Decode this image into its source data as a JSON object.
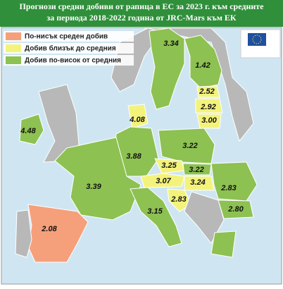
{
  "header": {
    "title": [
      "Прогнози средни добиви от рапица в ЕС за 2023 г. към средните",
      "за периода 2018-2022 година от JRC-Mars към ЕК"
    ]
  },
  "legend": [
    {
      "label": "По-нисък среден добив",
      "color": "#f5a07a"
    },
    {
      "label": "Добив близък до средния",
      "color": "#f3f37c"
    },
    {
      "label": "Добив по-висок от средния",
      "color": "#8dc152"
    }
  ],
  "map": {
    "regions": [
      {
        "label": "3.34"
      },
      {
        "label": "1.42"
      },
      {
        "label": "2.52"
      },
      {
        "label": "2.92"
      },
      {
        "label": "3.00"
      },
      {
        "label": "4.48"
      },
      {
        "label": "4.08"
      },
      {
        "label": "3.88"
      },
      {
        "label": "3.22"
      },
      {
        "label": "3.25"
      },
      {
        "label": "3.22"
      },
      {
        "label": "3.39"
      },
      {
        "label": "3.07"
      },
      {
        "label": "3.24"
      },
      {
        "label": "2.83"
      },
      {
        "label": "2.83"
      },
      {
        "label": "2.80"
      },
      {
        "label": "3.15"
      },
      {
        "label": "2.08"
      }
    ]
  }
}
